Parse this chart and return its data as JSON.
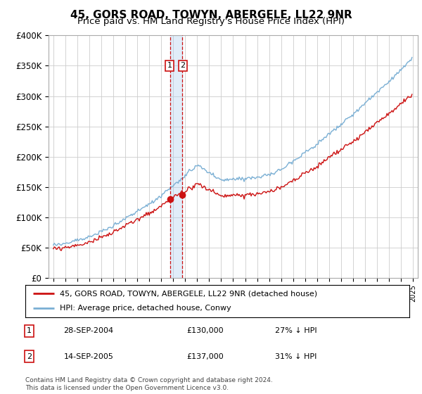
{
  "title": "45, GORS ROAD, TOWYN, ABERGELE, LL22 9NR",
  "subtitle": "Price paid vs. HM Land Registry's House Price Index (HPI)",
  "ylim": [
    0,
    400000
  ],
  "yticks": [
    0,
    50000,
    100000,
    150000,
    200000,
    250000,
    300000,
    350000,
    400000
  ],
  "ytick_labels": [
    "£0",
    "£50K",
    "£100K",
    "£150K",
    "£200K",
    "£250K",
    "£300K",
    "£350K",
    "£400K"
  ],
  "hpi_color": "#7aafd4",
  "price_color": "#cc1111",
  "vline_color": "#cc1111",
  "grid_color": "#cccccc",
  "legend_label_price": "45, GORS ROAD, TOWYN, ABERGELE, LL22 9NR (detached house)",
  "legend_label_hpi": "HPI: Average price, detached house, Conwy",
  "transaction1_date": "28-SEP-2004",
  "transaction1_price": "£130,000",
  "transaction1_hpi": "27% ↓ HPI",
  "transaction2_date": "14-SEP-2005",
  "transaction2_price": "£137,000",
  "transaction2_hpi": "31% ↓ HPI",
  "footer": "Contains HM Land Registry data © Crown copyright and database right 2024.\nThis data is licensed under the Open Government Licence v3.0.",
  "background_color": "#ffffff",
  "title_fontsize": 11,
  "subtitle_fontsize": 9.5,
  "t1_year": 2004.75,
  "t2_year": 2005.75,
  "price_t1": 130000,
  "price_t2": 137000,
  "xmin": 1995,
  "xmax": 2025
}
